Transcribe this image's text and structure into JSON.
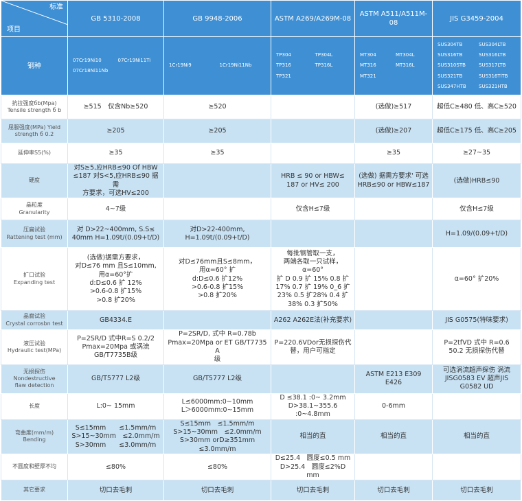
{
  "header": {
    "corner_row": "项目",
    "corner_col": "标准",
    "columns": [
      "GB 5310-2008",
      "GB 9948-2006",
      "ASTM A269/A269M-08",
      "ASTM A511/A511M-08",
      "JIS G3459-2004"
    ]
  },
  "grades": {
    "label": "钢种",
    "cells": [
      {
        "left": [
          "07Cr19Ni10",
          "07Cr18Ni11Nb"
        ],
        "right": [
          "07Cr19Ni11Ti"
        ]
      },
      {
        "left": [
          "1Cr19Ni9"
        ],
        "right": [
          "1Cr19Ni11Nb"
        ]
      },
      {
        "left": [
          "TP304",
          "TP316",
          "TP321"
        ],
        "right": [
          "TP304L",
          "TP316L"
        ]
      },
      {
        "left": [
          "MT304",
          "MT316",
          "MT321"
        ],
        "right": [
          "MT304L",
          "MT316L"
        ]
      },
      {
        "left": [
          "SUS304TB",
          "SUS316TB",
          "SUS310STB",
          "SUS321TB",
          "SUS347HTB"
        ],
        "right": [
          "SUS304LTB",
          "SUS316LTB",
          "SUS317LTB",
          "SUS316TiTB",
          "SUS321HTB"
        ]
      }
    ]
  },
  "rows": [
    {
      "label": "抗拉强度бb(Mpa)\nTensile strength б b",
      "cells": [
        "≥515　仅含Nb≥520",
        "≥520",
        null,
        "(选做)≥517",
        "超低C≥480 低、高C≥520"
      ]
    },
    {
      "label": "屈服强度(MPa) Yield\nstrength б 0.2",
      "cells": [
        "≥205",
        "≥205",
        null,
        "(选做)≥207",
        "超低C≥175 低、高C≥205"
      ]
    },
    {
      "label": "延伸率S5(%)",
      "cells": [
        "≥35",
        "≥35",
        null,
        "≥35",
        "≥27~35"
      ]
    },
    {
      "label": "硬度",
      "cells": [
        "对S≥5,应HRB≤90 Of HBW\n≤187 对S<5,应HRB≤90 据需\n方要求，可选HV≤200",
        null,
        "HRB ≤  90 or HBW≤\n187 or HV≤ 200",
        "(选做) 据需方要求' 可选\nHRB≤90 or HBW≤187",
        "(选做)HRB≤90"
      ]
    },
    {
      "label": "晶粒度\nGranularity",
      "cells": [
        "4~7级",
        null,
        "仅含H≤7级",
        null,
        "仅含H≤7级"
      ]
    },
    {
      "label": "压扁试验\nRattening test (mm)",
      "cells": [
        "对 D>22~400mm, S.S≤\n40mm H=1.09t/(0.09+t/D)",
        "对D>22-400mm,\nH=1.09t/(0.09+t/D)",
        null,
        null,
        "H=1.09/(0.09+t/D)"
      ]
    },
    {
      "label": "扩口试验\nExpanding test",
      "cells": [
        "(选做)据需方要求，\n对D≤76 mm 且S≤10mm,\n用α=60°扩\nd:D≤0.6  扩 12%\n>0.6-0.8 扩15%\n>0.8   扩20%",
        "对D≤76mm且S≤8mm，\n用α=60° 扩\nd:D≤0.6  扩12%\n>0.6-0.8 扩15%\n>0.8   扩20%",
        "每批钢管取一支，\n两端各取一只试样，α=60°\n扩 D 0.9 扩 15% 0.8 扩\n17% 0.7 扩 19% 0_6 扩\n23% 0.5 扩28% 0.4 扩\n38% 0.3 扩50%",
        null,
        "α=60° 扩20%"
      ]
    },
    {
      "label": "晶腐试验\nCrystal corrosbn test",
      "cells": [
        "GB4334.E",
        null,
        "A262 A262E法(补充要求)",
        null,
        "JIS G0575(特味要求)"
      ]
    },
    {
      "label": "液压试验\nHydraulic test(MPa)",
      "cells": [
        "P=2SR/D 式中R=S 0.2/2\nPmax=20Mpa 或涡流\nGB/T7735B级",
        "P=2SR/D, 式中 R=0.78b\nPmax=20Mpa or ET GB/T7735 A\n级",
        "P=220.6VDor无损探伤代\n替，用户可指定",
        null,
        "P=2tfVD 式中 R=0.6\n50.2 无损探伤代替"
      ]
    },
    {
      "label": "无损探伤\nNondestructive\nflaw detection",
      "cells": [
        "GB/T5777 L2级",
        "GB/T5777 L2级",
        null,
        "ASTM E213 E309 E426",
        "可选涡流超声探伤 涡流\nJISG0583 EV 超声JIS\nG0582 UD"
      ]
    },
    {
      "label": "长度",
      "cells": [
        "L:0~ 15mm",
        "L≤6000mm:0~10mm\nL＞6000mm:0~15mm",
        "D ≤38.1 :0~ 3.2mm\nD>38.1~355.6 :0~4.8mm",
        "0-6mm",
        null
      ]
    },
    {
      "label": "弯曲度(mm/m)\nBending",
      "cells": [
        "S≤15mm　　≤1.5mm/m\nS>15~30mm　≤2.0mm/m\nS>30mm　　≤3.0mm/m",
        "S≤15mm　≤1.5mm/m\nS>15~30mm　≤2.0mm/m\nS>30mm orD≥351mm ≤3.0mm/m",
        "相当的直",
        "相当的直",
        "相当的直"
      ]
    },
    {
      "label": "不圆度和壁厚不均",
      "cells": [
        "≤80%",
        "≤80%",
        "D≤25.4　圆度≤0.5 mm\nD>25.4　圆度≤2%D mm",
        null,
        null
      ]
    },
    {
      "label": "其它要求",
      "cells": [
        "切口去毛刺",
        "切口去毛刺",
        "切口去毛刺",
        "切口去毛刺",
        "切口去毛刺"
      ]
    }
  ]
}
